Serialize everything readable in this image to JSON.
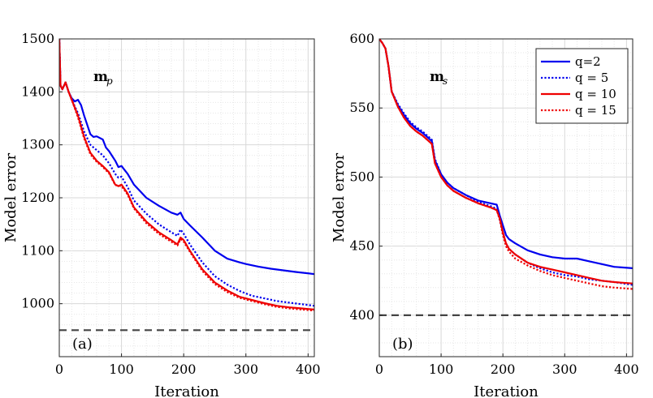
{
  "figure": {
    "panels": [
      "a",
      "b"
    ]
  },
  "chart_data": [
    {
      "type": "line",
      "panel_tag": "(a)",
      "annotation": "m",
      "annotation_sub": "p",
      "xlabel": "Iteration",
      "ylabel": "Model error",
      "xlim": [
        0,
        410
      ],
      "ylim": [
        900,
        1500
      ],
      "xticks": [
        0,
        100,
        200,
        300,
        400
      ],
      "yticks": [
        1000,
        1100,
        1200,
        1300,
        1400,
        1500
      ],
      "grid": true,
      "reference_line": {
        "y": 950,
        "style": "dashed",
        "color": "#444444"
      },
      "series": [
        {
          "name": "q=2",
          "color": "#0000ee",
          "style": "solid",
          "x": [
            0,
            2,
            5,
            10,
            15,
            20,
            25,
            30,
            35,
            40,
            50,
            55,
            60,
            70,
            75,
            80,
            90,
            95,
            100,
            110,
            120,
            140,
            160,
            180,
            190,
            195,
            200,
            210,
            230,
            250,
            270,
            290,
            300,
            320,
            340,
            360,
            380,
            410
          ],
          "y": [
            1500,
            1412,
            1405,
            1418,
            1400,
            1388,
            1382,
            1385,
            1375,
            1355,
            1320,
            1315,
            1316,
            1310,
            1295,
            1288,
            1270,
            1258,
            1260,
            1245,
            1225,
            1200,
            1185,
            1172,
            1168,
            1172,
            1160,
            1148,
            1125,
            1100,
            1085,
            1078,
            1075,
            1070,
            1066,
            1063,
            1060,
            1056
          ]
        },
        {
          "name": "q = 5",
          "color": "#0000ee",
          "style": "dotted",
          "x": [
            0,
            2,
            5,
            10,
            15,
            20,
            30,
            40,
            50,
            60,
            70,
            80,
            90,
            95,
            100,
            110,
            120,
            140,
            160,
            180,
            190,
            195,
            200,
            210,
            230,
            250,
            270,
            290,
            310,
            330,
            350,
            370,
            390,
            410
          ],
          "y": [
            1500,
            1412,
            1405,
            1418,
            1400,
            1385,
            1360,
            1325,
            1300,
            1290,
            1280,
            1265,
            1245,
            1238,
            1240,
            1220,
            1195,
            1170,
            1150,
            1135,
            1128,
            1140,
            1132,
            1112,
            1078,
            1052,
            1036,
            1024,
            1015,
            1010,
            1005,
            1002,
            999,
            996
          ]
        },
        {
          "name": "q = 10",
          "color": "#ee0000",
          "style": "solid",
          "x": [
            0,
            2,
            5,
            10,
            15,
            20,
            30,
            40,
            50,
            60,
            70,
            80,
            90,
            95,
            100,
            110,
            120,
            140,
            160,
            180,
            190,
            195,
            200,
            210,
            230,
            250,
            270,
            290,
            310,
            330,
            350,
            370,
            390,
            410
          ],
          "y": [
            1500,
            1412,
            1405,
            1418,
            1400,
            1385,
            1355,
            1315,
            1285,
            1270,
            1260,
            1248,
            1225,
            1222,
            1225,
            1208,
            1182,
            1155,
            1135,
            1120,
            1112,
            1125,
            1120,
            1100,
            1065,
            1040,
            1025,
            1013,
            1007,
            1001,
            996,
            993,
            991,
            989
          ]
        },
        {
          "name": "q = 15",
          "color": "#ee0000",
          "style": "dotted",
          "x": [
            0,
            2,
            5,
            10,
            15,
            20,
            30,
            40,
            50,
            60,
            70,
            80,
            90,
            100,
            110,
            120,
            140,
            160,
            180,
            190,
            195,
            200,
            210,
            230,
            250,
            270,
            290,
            310,
            330,
            350,
            370,
            390,
            410
          ],
          "y": [
            1500,
            1412,
            1405,
            1418,
            1400,
            1385,
            1352,
            1312,
            1282,
            1268,
            1258,
            1246,
            1224,
            1222,
            1206,
            1180,
            1152,
            1132,
            1117,
            1110,
            1122,
            1117,
            1098,
            1062,
            1037,
            1022,
            1011,
            1005,
            999,
            994,
            991,
            989,
            987
          ]
        }
      ]
    },
    {
      "type": "line",
      "panel_tag": "(b)",
      "annotation": "m",
      "annotation_sub": "s",
      "xlabel": "Iteration",
      "ylabel": "Model error",
      "xlim": [
        0,
        410
      ],
      "ylim": [
        370,
        600
      ],
      "xticks": [
        0,
        100,
        200,
        300,
        400
      ],
      "yticks": [
        400,
        450,
        500,
        550,
        600
      ],
      "grid": true,
      "reference_line": {
        "y": 400,
        "style": "dashed",
        "color": "#444444"
      },
      "legend_position": "top-right",
      "series": [
        {
          "name": "q=2",
          "color": "#0000ee",
          "style": "solid",
          "x": [
            0,
            5,
            10,
            15,
            20,
            30,
            40,
            50,
            60,
            70,
            80,
            85,
            90,
            100,
            110,
            120,
            140,
            160,
            180,
            190,
            195,
            200,
            205,
            210,
            220,
            240,
            260,
            280,
            300,
            320,
            340,
            360,
            380,
            410
          ],
          "y": [
            600,
            597,
            593,
            580,
            562,
            552,
            545,
            539,
            535,
            532,
            528,
            526,
            512,
            502,
            496,
            492,
            487,
            483,
            481,
            480,
            472,
            465,
            458,
            455,
            452,
            447,
            444,
            442,
            441,
            441,
            439,
            437,
            435,
            434
          ]
        },
        {
          "name": "q = 5",
          "color": "#0000ee",
          "style": "dotted",
          "x": [
            0,
            5,
            10,
            15,
            20,
            30,
            40,
            50,
            60,
            70,
            80,
            85,
            90,
            100,
            110,
            120,
            140,
            160,
            180,
            190,
            195,
            200,
            205,
            210,
            220,
            240,
            260,
            280,
            300,
            320,
            340,
            360,
            380,
            410
          ],
          "y": [
            600,
            597,
            593,
            580,
            562,
            553,
            546,
            540,
            536,
            533,
            529,
            527,
            513,
            502,
            496,
            492,
            487,
            482,
            479,
            477,
            469,
            459,
            452,
            448,
            444,
            438,
            434,
            431,
            429,
            428,
            426,
            425,
            424,
            422
          ]
        },
        {
          "name": "q = 10",
          "color": "#ee0000",
          "style": "solid",
          "x": [
            0,
            5,
            10,
            15,
            20,
            30,
            40,
            50,
            60,
            70,
            80,
            85,
            90,
            100,
            110,
            120,
            140,
            160,
            180,
            190,
            195,
            200,
            205,
            210,
            220,
            240,
            260,
            280,
            300,
            320,
            340,
            360,
            380,
            410
          ],
          "y": [
            600,
            597,
            593,
            580,
            562,
            551,
            543,
            537,
            533,
            530,
            526,
            524,
            510,
            500,
            494,
            490,
            485,
            481,
            478,
            476,
            470,
            460,
            452,
            448,
            444,
            438,
            435,
            433,
            431,
            429,
            427,
            425,
            424,
            423
          ]
        },
        {
          "name": "q = 15",
          "color": "#ee0000",
          "style": "dotted",
          "x": [
            0,
            5,
            10,
            15,
            20,
            30,
            40,
            50,
            60,
            70,
            80,
            85,
            90,
            100,
            110,
            120,
            140,
            160,
            180,
            190,
            195,
            200,
            205,
            210,
            220,
            240,
            260,
            280,
            300,
            320,
            340,
            360,
            380,
            410
          ],
          "y": [
            600,
            597,
            593,
            580,
            562,
            551,
            543,
            537,
            533,
            530,
            526,
            524,
            510,
            500,
            494,
            490,
            485,
            481,
            478,
            476,
            469,
            458,
            450,
            446,
            441,
            436,
            432,
            429,
            427,
            425,
            423,
            421,
            420,
            419
          ]
        }
      ]
    }
  ]
}
